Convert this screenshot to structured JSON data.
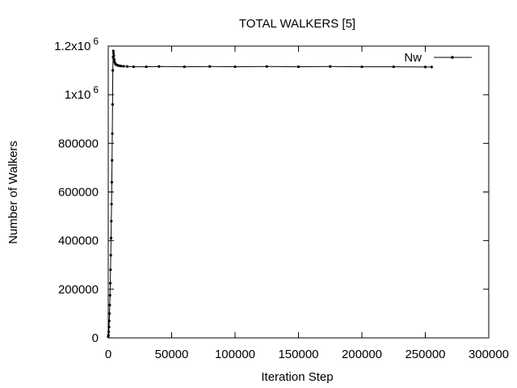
{
  "chart_data": {
    "type": "line",
    "title": "TOTAL WALKERS [5]",
    "xlabel": "Iteration Step",
    "ylabel": "Number of Walkers",
    "xlim": [
      0,
      300000
    ],
    "ylim": [
      0,
      1200000
    ],
    "xticks": [
      {
        "value": 0,
        "label": "0"
      },
      {
        "value": 50000,
        "label": "50000"
      },
      {
        "value": 100000,
        "label": "100000"
      },
      {
        "value": 150000,
        "label": "150000"
      },
      {
        "value": 200000,
        "label": "200000"
      },
      {
        "value": 250000,
        "label": "250000"
      },
      {
        "value": 300000,
        "label": "300000"
      }
    ],
    "yticks": [
      {
        "value": 0,
        "label": "0",
        "sup": ""
      },
      {
        "value": 200000,
        "label": "200000",
        "sup": ""
      },
      {
        "value": 400000,
        "label": "400000",
        "sup": ""
      },
      {
        "value": 600000,
        "label": "600000",
        "sup": ""
      },
      {
        "value": 800000,
        "label": "800000",
        "sup": ""
      },
      {
        "value": 1000000,
        "label": "1x10",
        "sup": "6"
      },
      {
        "value": 1200000,
        "label": "1.2x10",
        "sup": "6"
      }
    ],
    "legend": {
      "label": "Nw",
      "position": "top-right"
    },
    "series": [
      {
        "name": "Nw",
        "x": [
          0,
          200,
          400,
          600,
          800,
          1000,
          1200,
          1400,
          1600,
          1800,
          2000,
          2200,
          2400,
          2600,
          2800,
          3000,
          3200,
          3400,
          3600,
          3800,
          4000,
          4200,
          4400,
          4700,
          5000,
          5500,
          6000,
          7000,
          8000,
          9000,
          10000,
          12000,
          15000,
          20000,
          30000,
          40000,
          60000,
          80000,
          100000,
          125000,
          150000,
          175000,
          200000,
          225000,
          250000,
          255000
        ],
        "y": [
          5000,
          12000,
          25000,
          45000,
          70000,
          100000,
          135000,
          175000,
          225000,
          280000,
          340000,
          410000,
          480000,
          550000,
          640000,
          730000,
          840000,
          960000,
          1100000,
          1155000,
          1180000,
          1170000,
          1160000,
          1145000,
          1135000,
          1128000,
          1124000,
          1122000,
          1120000,
          1119000,
          1118000,
          1117000,
          1116000,
          1115000,
          1115000,
          1116000,
          1115000,
          1116000,
          1115000,
          1116000,
          1115000,
          1116000,
          1115000,
          1115000,
          1114000,
          1114000
        ]
      }
    ]
  }
}
